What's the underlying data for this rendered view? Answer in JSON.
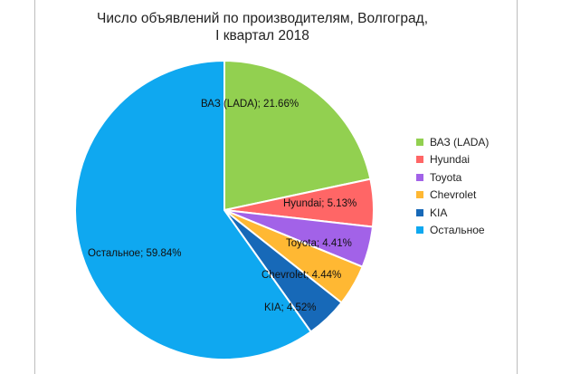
{
  "chart_data": {
    "type": "pie",
    "title_line1": "Число объявлений по производителям, Волгоград,",
    "title_line2": "I квартал 2018",
    "legend_position": "right",
    "slices": [
      {
        "name": "ВАЗ (LADA)",
        "value": 21.66,
        "label": "ВАЗ (LADA); 21.66%",
        "color": "#92d050"
      },
      {
        "name": "Hyundai",
        "value": 5.13,
        "label": "Hyundai; 5.13%",
        "color": "#ff6666"
      },
      {
        "name": "Toyota",
        "value": 4.41,
        "label": "Toyota; 4.41%",
        "color": "#a262e8"
      },
      {
        "name": "Chevrolet",
        "value": 4.44,
        "label": "Chevrolet; 4.44%",
        "color": "#ffb833"
      },
      {
        "name": "KIA",
        "value": 4.52,
        "label": "KIA; 4.52%",
        "color": "#1769b8"
      },
      {
        "name": "Остальное",
        "value": 59.84,
        "label": "Остальное; 59.84%",
        "color": "#0fa8f0"
      }
    ]
  }
}
